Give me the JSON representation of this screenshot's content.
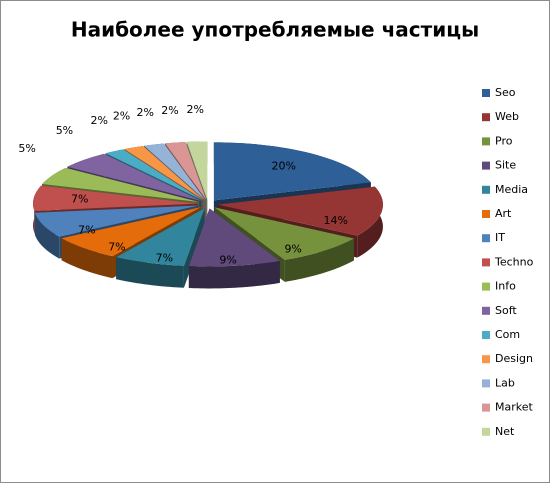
{
  "chart_data": {
    "type": "pie3d",
    "title": "Наиболее употребляемые частицы",
    "categories": [
      "Seo",
      "Web",
      "Pro",
      "Site",
      "Media",
      "Art",
      "IT",
      "Techno",
      "Info",
      "Soft",
      "Com",
      "Design",
      "Lab",
      "Market",
      "Net"
    ],
    "values": [
      20,
      14,
      9,
      9,
      7,
      7,
      7,
      7,
      5,
      5,
      2,
      2,
      2,
      2,
      2
    ],
    "value_labels": [
      "20%",
      "14%",
      "9%",
      "9%",
      "7%",
      "7%",
      "7%",
      "7%",
      "5%",
      "5%",
      "2%",
      "2%",
      "2%",
      "2%",
      "2%"
    ],
    "colors": [
      "#2f5f97",
      "#963634",
      "#76923c",
      "#5f4a7b",
      "#31859c",
      "#e46c0a",
      "#4f81bd",
      "#c0504d",
      "#9bbb59",
      "#8064a2",
      "#4bacc6",
      "#f79646",
      "#95b3d7",
      "#d99694",
      "#c3d69b"
    ],
    "legend": "right"
  }
}
